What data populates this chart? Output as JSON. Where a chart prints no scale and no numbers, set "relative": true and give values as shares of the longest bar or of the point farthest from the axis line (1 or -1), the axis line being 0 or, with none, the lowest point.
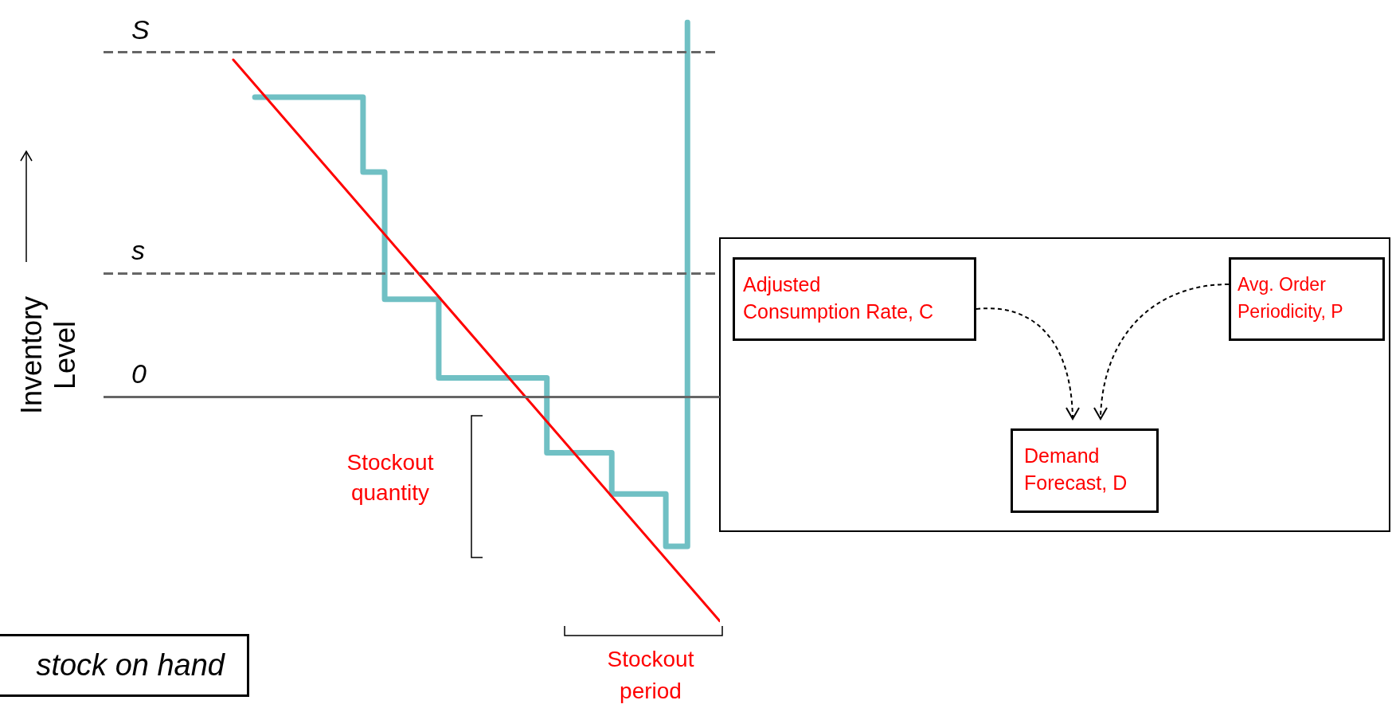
{
  "chart_data": {
    "type": "step",
    "relative": true,
    "ylabel": "Inventory Level",
    "categories": [
      null,
      null,
      null,
      null,
      null,
      null,
      null,
      null,
      null,
      null,
      null,
      null,
      null,
      null,
      null,
      null,
      null,
      null,
      null,
      null,
      null,
      null,
      null,
      null,
      null,
      null,
      null,
      null,
      null,
      null,
      null,
      null,
      null,
      null,
      null,
      null,
      null,
      null,
      null,
      null,
      null,
      null,
      null,
      null,
      null,
      null,
      null,
      null,
      null,
      null,
      null,
      null,
      null,
      null,
      null,
      null,
      null,
      null
    ],
    "series": [
      {
        "type": "step",
        "color": "#70c0c4",
        "values": [
          null,
          null,
          null,
          null,
          null,
          null,
          null,
          null,
          null,
          null,
          null,
          null,
          null,
          null,
          0.8,
          0.8,
          0.8,
          0.8,
          0.8,
          0.8,
          0.8,
          0.8,
          0.8,
          0.8,
          0.6,
          0.6,
          0.26,
          0.26,
          0.26,
          0.26,
          0.26,
          0.05,
          0.05,
          0.05,
          0.05,
          0.05,
          0.05,
          0.05,
          0.05,
          0.05,
          0.05,
          -0.15,
          -0.15,
          -0.15,
          -0.15,
          -0.15,
          -0.15,
          -0.26,
          -0.26,
          -0.26,
          -0.26,
          -0.26,
          -0.4,
          -0.4,
          1.0,
          null,
          null,
          null
        ]
      },
      {
        "type": "line",
        "color": "#ff0000",
        "values": [
          null,
          null,
          null,
          null,
          null,
          null,
          null,
          null,
          null,
          null,
          null,
          null,
          0.9,
          null,
          null,
          null,
          null,
          null,
          null,
          null,
          null,
          null,
          null,
          null,
          null,
          null,
          null,
          null,
          null,
          null,
          null,
          null,
          null,
          null,
          null,
          null,
          null,
          null,
          null,
          null,
          null,
          null,
          null,
          null,
          null,
          null,
          null,
          null,
          null,
          null,
          null,
          null,
          null,
          null,
          null,
          null,
          null,
          -0.6
        ]
      }
    ],
    "ref_lines": [
      {
        "axis": "y",
        "value": 0.92,
        "label": "S",
        "color": "#666666",
        "line_style": "dashed"
      },
      {
        "axis": "y",
        "value": 0.33,
        "label": "s",
        "color": "#666666",
        "line_style": "dashed"
      },
      {
        "axis": "y",
        "value": 0,
        "label": "0",
        "color": "#666666",
        "line_style": "solid"
      }
    ],
    "annotations": [
      "Stockout quantity",
      "Stockout period",
      "stock on hand",
      "Adjusted Consumption Rate, C",
      "Avg. Order Periodicity, P",
      "Demand Forecast, D"
    ]
  }
}
